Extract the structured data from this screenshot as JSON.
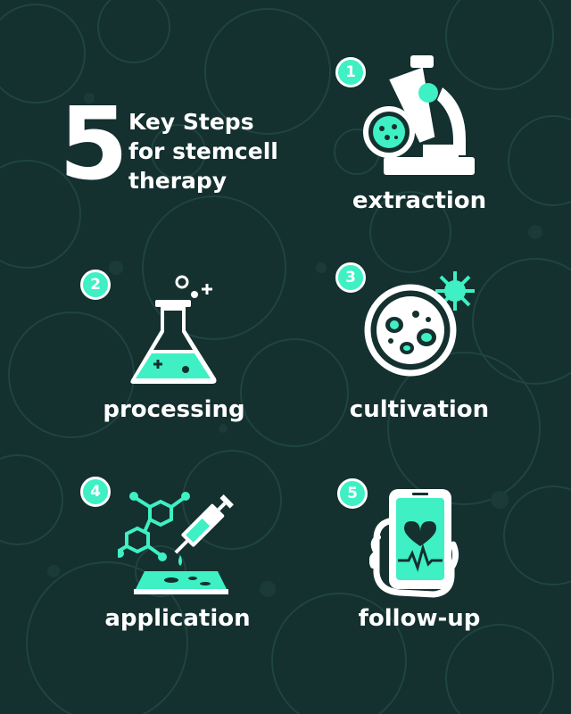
{
  "colors": {
    "background": "#14302f",
    "accent": "#3ef0c4",
    "text": "#ffffff"
  },
  "title": {
    "number": "5",
    "line1": "Key Steps",
    "line2": "for stemcell",
    "line3": "therapy"
  },
  "steps": [
    {
      "badge": "1",
      "label": "extraction",
      "icon": "microscope-icon"
    },
    {
      "badge": "2",
      "label": "processing",
      "icon": "flask-icon"
    },
    {
      "badge": "3",
      "label": "cultivation",
      "icon": "petri-dish-icon"
    },
    {
      "badge": "4",
      "label": "application",
      "icon": "syringe-molecule-icon"
    },
    {
      "badge": "5",
      "label": "follow-up",
      "icon": "phone-health-icon"
    }
  ]
}
